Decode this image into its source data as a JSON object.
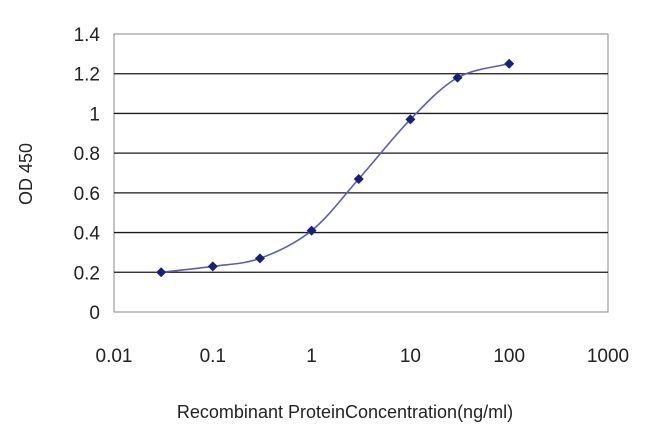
{
  "chart_data": {
    "type": "line",
    "xscale": "log",
    "xlabel": "Recombinant ProteinConcentration(ng/ml)",
    "ylabel": "OD 450",
    "xlim": [
      0.01,
      1000
    ],
    "ylim": [
      0,
      1.4
    ],
    "x_ticks": [
      "0.01",
      "0.1",
      "1",
      "10",
      "100",
      "1000"
    ],
    "y_ticks": [
      "0",
      "0.2",
      "0.4",
      "0.6",
      "0.8",
      "1",
      "1.2",
      "1.4"
    ],
    "grid": "horizontal",
    "series": [
      {
        "x": [
          0.03,
          0.1,
          0.3,
          1,
          3,
          10,
          30,
          100
        ],
        "y": [
          0.2,
          0.23,
          0.27,
          0.41,
          0.67,
          0.97,
          1.18,
          1.25
        ]
      }
    ],
    "colors": {
      "line": "#5a5fb0",
      "marker": "#1a1f7a",
      "grid": "#1a1a1a",
      "plot_border": "#888888"
    }
  }
}
